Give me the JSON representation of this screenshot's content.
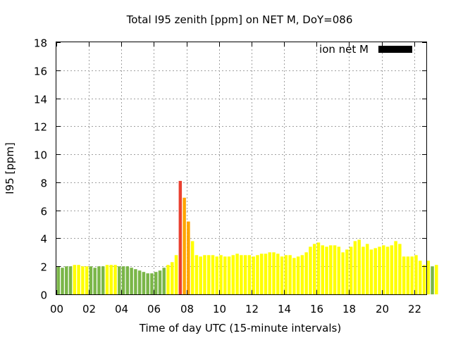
{
  "chart_data": {
    "type": "bar",
    "title": "Total I95 zenith [ppm] on NET M, DoY=086",
    "xlabel": "Time of day UTC (15-minute intervals)",
    "ylabel": "I95 [ppm]",
    "legend": {
      "label": "ion net M",
      "color": "#000000",
      "position": "top-right"
    },
    "xlim": [
      0,
      22.75
    ],
    "ylim": [
      0,
      18
    ],
    "x_ticks": [
      {
        "value": 0,
        "label": "00"
      },
      {
        "value": 2,
        "label": "02"
      },
      {
        "value": 4,
        "label": "04"
      },
      {
        "value": 6,
        "label": "06"
      },
      {
        "value": 8,
        "label": "08"
      },
      {
        "value": 10,
        "label": "10"
      },
      {
        "value": 12,
        "label": "12"
      },
      {
        "value": 14,
        "label": "14"
      },
      {
        "value": 16,
        "label": "16"
      },
      {
        "value": 18,
        "label": "18"
      },
      {
        "value": 20,
        "label": "20"
      },
      {
        "value": 22,
        "label": "22"
      }
    ],
    "y_ticks": [
      0,
      2,
      4,
      6,
      8,
      10,
      12,
      14,
      16,
      18
    ],
    "interval_hours": 0.25,
    "grid": true,
    "values": [
      2.0,
      1.9,
      2.0,
      2.0,
      2.1,
      2.1,
      2.0,
      2.0,
      2.0,
      1.9,
      2.0,
      2.0,
      2.1,
      2.1,
      2.1,
      2.0,
      2.0,
      2.0,
      1.9,
      1.8,
      1.7,
      1.6,
      1.5,
      1.5,
      1.6,
      1.7,
      1.9,
      2.1,
      2.3,
      2.8,
      8.1,
      6.9,
      5.2,
      3.8,
      2.8,
      2.7,
      2.8,
      2.8,
      2.8,
      2.7,
      2.8,
      2.7,
      2.7,
      2.8,
      2.9,
      2.8,
      2.8,
      2.8,
      2.7,
      2.8,
      2.9,
      2.9,
      3.0,
      3.0,
      2.9,
      2.7,
      2.8,
      2.8,
      2.6,
      2.7,
      2.8,
      3.0,
      3.4,
      3.6,
      3.7,
      3.5,
      3.4,
      3.5,
      3.5,
      3.4,
      3.0,
      3.2,
      3.4,
      3.8,
      3.9,
      3.4,
      3.6,
      3.2,
      3.3,
      3.4,
      3.5,
      3.4,
      3.5,
      3.8,
      3.6,
      2.7,
      2.7,
      2.7,
      2.8,
      2.4,
      2.1,
      2.4,
      2.0,
      2.1
    ],
    "colors": [
      "#7ab648",
      "#7ab648",
      "#7ab648",
      "#7ab648",
      "#ffff00",
      "#ffff00",
      "#ffff00",
      "#ffff00",
      "#7ab648",
      "#7ab648",
      "#7ab648",
      "#7ab648",
      "#ffff00",
      "#ffff00",
      "#ffff00",
      "#7ab648",
      "#7ab648",
      "#7ab648",
      "#7ab648",
      "#7ab648",
      "#7ab648",
      "#7ab648",
      "#7ab648",
      "#7ab648",
      "#7ab648",
      "#7ab648",
      "#7ab648",
      "#ffff00",
      "#ffff00",
      "#ffff00",
      "#ea4030",
      "#ffa500",
      "#ffa500",
      "#ffff00",
      "#ffff00",
      "#ffff00",
      "#ffff00",
      "#ffff00",
      "#ffff00",
      "#ffff00",
      "#ffff00",
      "#ffff00",
      "#ffff00",
      "#ffff00",
      "#ffff00",
      "#ffff00",
      "#ffff00",
      "#ffff00",
      "#ffff00",
      "#ffff00",
      "#ffff00",
      "#ffff00",
      "#ffff00",
      "#ffff00",
      "#ffff00",
      "#ffff00",
      "#ffff00",
      "#ffff00",
      "#ffff00",
      "#ffff00",
      "#ffff00",
      "#ffff00",
      "#ffff00",
      "#ffff00",
      "#ffff00",
      "#ffff00",
      "#ffff00",
      "#ffff00",
      "#ffff00",
      "#ffff00",
      "#ffff00",
      "#ffff00",
      "#ffff00",
      "#ffff00",
      "#ffff00",
      "#ffff00",
      "#ffff00",
      "#ffff00",
      "#ffff00",
      "#ffff00",
      "#ffff00",
      "#ffff00",
      "#ffff00",
      "#ffff00",
      "#ffff00",
      "#ffff00",
      "#ffff00",
      "#ffff00",
      "#ffff00",
      "#ffff00",
      "#ffff00",
      "#ffff00",
      "#7ab648",
      "#ffff00"
    ]
  }
}
